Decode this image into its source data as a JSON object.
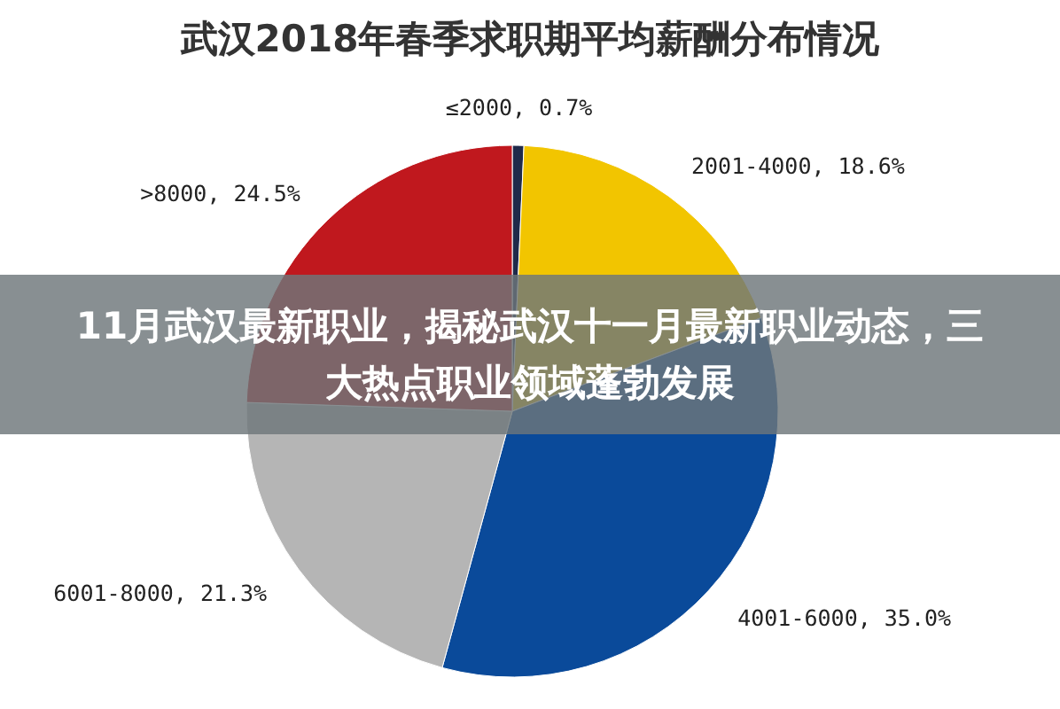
{
  "chart_data": {
    "type": "pie",
    "title": "武汉2018年春季求职期平均薪酬分布情况",
    "categories": [
      "≤2000",
      "2001-4000",
      "4001-6000",
      "6001-8000",
      ">8000"
    ],
    "values": [
      0.7,
      18.6,
      35.0,
      21.3,
      24.5
    ],
    "value_labels": [
      "0.7%",
      "18.6%",
      "35.0%",
      "21.3%",
      "24.5%"
    ],
    "colors": [
      "#1f2a4a",
      "#f2c500",
      "#0a4a9a",
      "#b5b5b5",
      "#c0181e"
    ],
    "annotations": [
      "11月武汉最新职业，揭秘武汉十一月最新职业动态，三大热点职业领域蓬勃发展"
    ]
  }
}
